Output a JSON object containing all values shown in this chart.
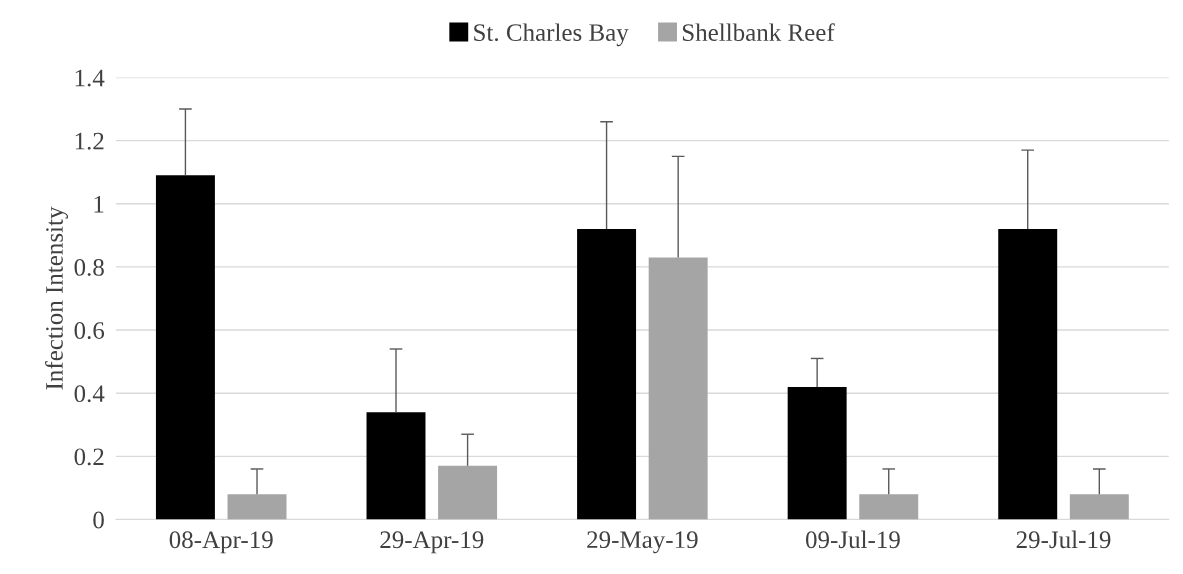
{
  "chart_data": {
    "type": "bar",
    "ylabel": "Infection Intensity",
    "categories": [
      "08-Apr-19",
      "29-Apr-19",
      "29-May-19",
      "09-Jul-19",
      "29-Jul-19"
    ],
    "series": [
      {
        "name": "St. Charles Bay",
        "color": "#000000",
        "values": [
          1.09,
          0.34,
          0.92,
          0.42,
          0.92
        ],
        "errors": [
          [
            1.09,
            1.3
          ],
          [
            0.34,
            0.54
          ],
          [
            0.92,
            1.26
          ],
          [
            0.42,
            0.51
          ],
          [
            0.92,
            1.17
          ]
        ]
      },
      {
        "name": "Shellbank Reef",
        "color": "#a5a5a5",
        "values": [
          0.08,
          0.17,
          0.83,
          0.08,
          0.08
        ],
        "errors": [
          [
            0.08,
            0.16
          ],
          [
            0.17,
            0.27
          ],
          [
            0.83,
            1.15
          ],
          [
            0.08,
            0.16
          ],
          [
            0.08,
            0.16
          ]
        ]
      }
    ],
    "ylim": [
      0,
      1.4
    ],
    "yticks": [
      0,
      0.2,
      0.4,
      0.6,
      0.8,
      1,
      1.2,
      1.4
    ],
    "grid": "y",
    "legend": "top"
  }
}
